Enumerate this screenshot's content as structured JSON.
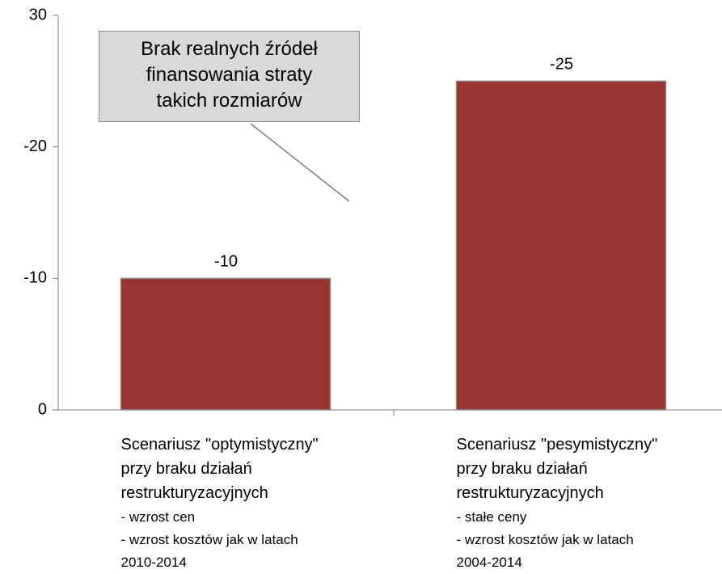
{
  "chart_data": {
    "type": "bar",
    "categories": [
      "Scenariusz \"optymistyczny\"\nprzy braku działań\nrestrukturyzacyjnych",
      "Scenariusz \"pesymistyczny\"\nprzy braku działań\nrestrukturyzacyjnych"
    ],
    "category_notes": [
      "- wzrost cen\n- wzrost kosztów jak w latach\n2010-2014",
      "- stałe ceny\n- wzrost kosztów jak w latach\n2004-2014"
    ],
    "values": [
      -10,
      -25
    ],
    "color": "#983530",
    "ylim": [
      0,
      -30
    ],
    "yticks": [
      0,
      -10,
      -20,
      {
        "value": -30,
        "label": "30"
      }
    ],
    "annotation": "Brak realnych źródeł\nfinansowania straty\ntakich rozmiarów"
  }
}
